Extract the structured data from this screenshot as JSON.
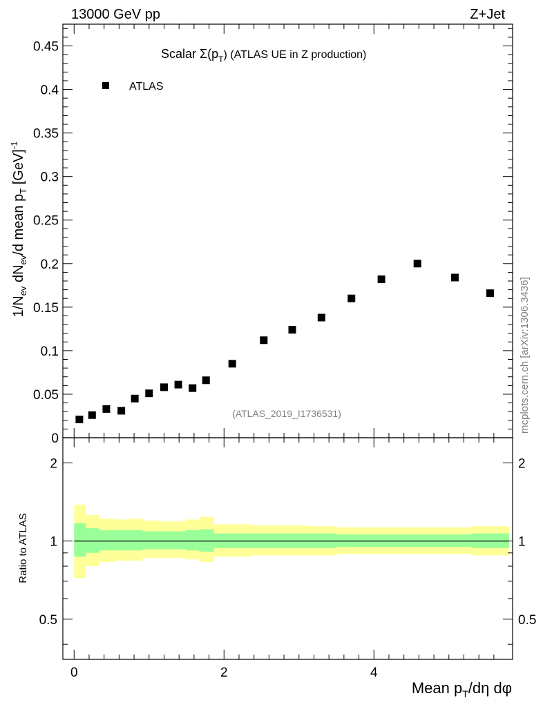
{
  "header": {
    "left": "13000 GeV pp",
    "right": "Z+Jet"
  },
  "side_label": "mcplots.cern.ch [arXiv:1306.3436]",
  "chart_data": [
    {
      "type": "scatter",
      "title_main": "Scalar Σ(p",
      "title_sub": "T",
      "title_rest": ") (ATLAS UE in Z production)",
      "watermark": "(ATLAS_2019_I1736531)",
      "ylabel": "1/N_ev dN_ev/d mean p_T [GeV]^-1",
      "ylabel_parts": {
        "a": "1/N",
        "a_sub": "ev",
        "b": " dN",
        "b_sub": "ev",
        "c": "/d mean p",
        "c_sub": "T",
        "d": " [GeV]",
        "d_sup": "-1"
      },
      "xlim": [
        -0.15,
        5.85
      ],
      "ylim": [
        0,
        0.475
      ],
      "yticks": [
        0,
        0.05,
        0.1,
        0.15,
        0.2,
        0.25,
        0.3,
        0.35,
        0.4,
        0.45
      ],
      "ytick_labels": [
        "0",
        "0.05",
        "0.1",
        "0.15",
        "0.2",
        "0.25",
        "0.3",
        "0.35",
        "0.4",
        "0.45"
      ],
      "legend": {
        "label": "ATLAS",
        "placement": "top-left"
      },
      "series": [
        {
          "name": "ATLAS",
          "color": "#000000",
          "marker": "square",
          "x": [
            0.07,
            0.24,
            0.43,
            0.63,
            0.81,
            1.0,
            1.2,
            1.39,
            1.58,
            1.76,
            2.11,
            2.53,
            2.91,
            3.3,
            3.7,
            4.1,
            4.58,
            5.08,
            5.55
          ],
          "y": [
            0.021,
            0.026,
            0.033,
            0.031,
            0.045,
            0.051,
            0.058,
            0.061,
            0.057,
            0.066,
            0.085,
            0.112,
            0.124,
            0.138,
            0.16,
            0.182,
            0.2,
            0.184,
            0.166
          ]
        }
      ]
    },
    {
      "type": "area",
      "ylabel": "Ratio to ATLAS",
      "xlabel": "Mean p_T/dη dφ",
      "xlabel_parts": {
        "a": "Mean p",
        "a_sub": "T",
        "b": "/dη dφ"
      },
      "xlim": [
        -0.15,
        5.85
      ],
      "ylim": [
        0.35,
        2.5
      ],
      "yscale": "log",
      "xticks": [
        0,
        2,
        4
      ],
      "xtick_labels": [
        "0",
        "2",
        "4"
      ],
      "yticks": [
        0.5,
        1,
        2
      ],
      "ytick_labels": [
        "0.5",
        "1",
        "2"
      ],
      "reference_line": 1,
      "bands": {
        "edges": [
          0,
          0.15,
          0.33,
          0.53,
          0.72,
          0.91,
          1.1,
          1.3,
          1.49,
          1.67,
          1.86,
          2.36,
          2.71,
          3.1,
          3.5,
          3.9,
          4.3,
          4.85,
          5.3,
          5.8
        ],
        "yellow_lo": [
          0.72,
          0.8,
          0.83,
          0.84,
          0.84,
          0.86,
          0.86,
          0.86,
          0.85,
          0.83,
          0.87,
          0.88,
          0.88,
          0.88,
          0.89,
          0.89,
          0.89,
          0.89,
          0.88
        ],
        "yellow_hi": [
          1.38,
          1.26,
          1.22,
          1.21,
          1.22,
          1.2,
          1.19,
          1.19,
          1.21,
          1.24,
          1.16,
          1.15,
          1.15,
          1.14,
          1.13,
          1.13,
          1.13,
          1.13,
          1.14
        ],
        "green_lo": [
          0.87,
          0.9,
          0.92,
          0.92,
          0.92,
          0.93,
          0.93,
          0.93,
          0.92,
          0.91,
          0.94,
          0.94,
          0.94,
          0.94,
          0.95,
          0.95,
          0.95,
          0.95,
          0.94
        ],
        "green_hi": [
          1.17,
          1.12,
          1.1,
          1.1,
          1.1,
          1.09,
          1.09,
          1.09,
          1.1,
          1.11,
          1.07,
          1.07,
          1.07,
          1.07,
          1.06,
          1.06,
          1.06,
          1.06,
          1.07
        ],
        "yellow_color": "#ffff99",
        "green_color": "#99ff99"
      }
    }
  ]
}
